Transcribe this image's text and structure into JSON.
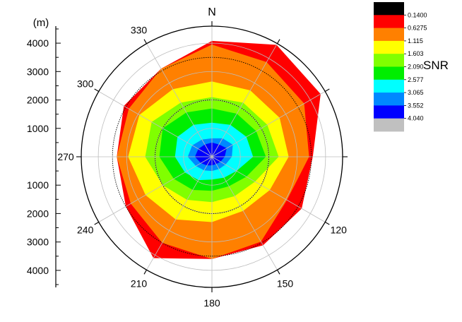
{
  "chart_data": {
    "type": "heatmap",
    "subtype": "polar-contour",
    "north_label": "N",
    "radial_unit_label": "(m)",
    "radial_tick_labels": [
      "4000",
      "3000",
      "2000",
      "1000",
      "1000",
      "2000",
      "3000",
      "4000"
    ],
    "angle_labels": [
      "330",
      "300",
      "270",
      "240",
      "210",
      "180",
      "150",
      "120"
    ],
    "angle_ticks_deg": [
      330,
      300,
      270,
      240,
      210,
      180,
      150,
      120
    ],
    "radial_range_m": [
      0,
      4600
    ],
    "colorbar_title": "SNR",
    "colorbar_levels": [
      "0.1400",
      "0.6275",
      "1.115",
      "1.603",
      "2.090",
      "2.577",
      "3.065",
      "3.552",
      "4.040"
    ],
    "colorbar_colors": [
      "#000000",
      "#ff0000",
      "#ff8000",
      "#ffff00",
      "#80ff00",
      "#00ee00",
      "#00ffff",
      "#0088ff",
      "#0000ff",
      "#c0c0c0"
    ],
    "contour_bands": [
      {
        "color": "#ff0000",
        "radii_m": [
          [
            0,
            4080
          ],
          [
            30,
            4550
          ],
          [
            60,
            4420
          ],
          [
            90,
            3550
          ],
          [
            120,
            3650
          ],
          [
            150,
            3600
          ],
          [
            180,
            3600
          ],
          [
            210,
            4120
          ],
          [
            240,
            3500
          ],
          [
            270,
            3350
          ],
          [
            300,
            3580
          ],
          [
            330,
            3580
          ]
        ]
      },
      {
        "color": "#ff8000",
        "radii_m": [
          [
            0,
            3950
          ],
          [
            30,
            3850
          ],
          [
            60,
            3750
          ],
          [
            90,
            3420
          ],
          [
            120,
            3050
          ],
          [
            150,
            3450
          ],
          [
            180,
            3600
          ],
          [
            210,
            3500
          ],
          [
            240,
            3300
          ],
          [
            270,
            3350
          ],
          [
            300,
            3380
          ],
          [
            330,
            3580
          ]
        ]
      },
      {
        "color": "#ffff00",
        "radii_m": [
          [
            0,
            2650
          ],
          [
            30,
            2700
          ],
          [
            60,
            2750
          ],
          [
            90,
            2700
          ],
          [
            120,
            2350
          ],
          [
            150,
            2200
          ],
          [
            180,
            2300
          ],
          [
            210,
            2550
          ],
          [
            240,
            2700
          ],
          [
            270,
            2950
          ],
          [
            300,
            2950
          ],
          [
            330,
            2750
          ]
        ]
      },
      {
        "color": "#80ff00",
        "radii_m": [
          [
            0,
            2100
          ],
          [
            30,
            2200
          ],
          [
            60,
            2250
          ],
          [
            90,
            2350
          ],
          [
            120,
            1750
          ],
          [
            150,
            1600
          ],
          [
            180,
            1600
          ],
          [
            210,
            1750
          ],
          [
            240,
            2000
          ],
          [
            270,
            2350
          ],
          [
            300,
            2450
          ],
          [
            330,
            2200
          ]
        ]
      },
      {
        "color": "#00ee00",
        "radii_m": [
          [
            0,
            1700
          ],
          [
            30,
            1750
          ],
          [
            60,
            1800
          ],
          [
            90,
            1900
          ],
          [
            120,
            1400
          ],
          [
            150,
            1200
          ],
          [
            180,
            1200
          ],
          [
            210,
            1350
          ],
          [
            240,
            1550
          ],
          [
            270,
            1850
          ],
          [
            300,
            2000
          ],
          [
            330,
            1800
          ]
        ]
      },
      {
        "color": "#00ffff",
        "radii_m": [
          [
            0,
            1200
          ],
          [
            30,
            1300
          ],
          [
            60,
            1400
          ],
          [
            90,
            1450
          ],
          [
            120,
            1000
          ],
          [
            150,
            850
          ],
          [
            180,
            800
          ],
          [
            210,
            950
          ],
          [
            240,
            1100
          ],
          [
            270,
            1300
          ],
          [
            300,
            1400
          ],
          [
            330,
            1300
          ]
        ]
      },
      {
        "color": "#0088ff",
        "radii_m": [
          [
            0,
            650
          ],
          [
            30,
            750
          ],
          [
            60,
            850
          ],
          [
            90,
            700
          ],
          [
            120,
            550
          ],
          [
            150,
            500
          ],
          [
            180,
            500
          ],
          [
            210,
            550
          ],
          [
            240,
            650
          ],
          [
            270,
            850
          ],
          [
            300,
            800
          ],
          [
            330,
            700
          ]
        ]
      },
      {
        "color": "#0000ff",
        "radii_m": [
          [
            0,
            500
          ],
          [
            30,
            500
          ],
          [
            60,
            600
          ],
          [
            90,
            450
          ],
          [
            120,
            350
          ],
          [
            150,
            300
          ],
          [
            180,
            300
          ],
          [
            210,
            350
          ],
          [
            240,
            450
          ],
          [
            270,
            600
          ],
          [
            300,
            550
          ],
          [
            330,
            500
          ]
        ]
      }
    ],
    "dotted_range_rings_m": [
      2000,
      3500
    ],
    "grid": true
  }
}
